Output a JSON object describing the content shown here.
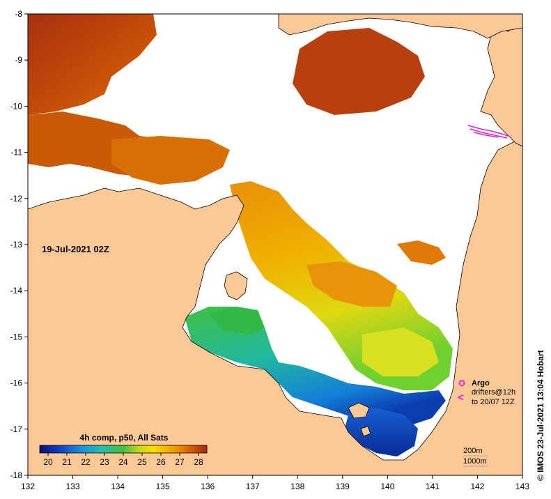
{
  "map": {
    "date_label": "19-Jul-2021 02Z",
    "credit": "© IMOS 23-Jul-2021 13:04 Hobart",
    "x_ticks": [
      "132",
      "133",
      "134",
      "135",
      "136",
      "137",
      "138",
      "139",
      "140",
      "141",
      "142",
      "143"
    ],
    "y_ticks": [
      "-8",
      "-9",
      "-10",
      "-11",
      "-12",
      "-13",
      "-14",
      "-15",
      "-16",
      "-17",
      "-18"
    ],
    "x_range": [
      132,
      143
    ],
    "y_range": [
      -18,
      -8
    ],
    "colorbar": {
      "title": "4h comp, p50, All Sats",
      "ticks": [
        "20",
        "21",
        "22",
        "23",
        "24",
        "25",
        "26",
        "27",
        "28"
      ],
      "range": [
        20,
        28
      ],
      "colors": [
        "#0a0a7a",
        "#1040c8",
        "#1890e0",
        "#20c0b0",
        "#40c040",
        "#c8d820",
        "#f8e000",
        "#f0a000",
        "#d86000",
        "#a02808"
      ]
    },
    "legend": {
      "argo_label": "Argo",
      "drifters_line1": "drifters@12h",
      "drifters_line2": "to 20/07 12Z",
      "argo_symbol": "✪",
      "drifter_symbol": "<"
    },
    "depth_legend": {
      "line1": "200m",
      "line2": "1000m"
    },
    "colors": {
      "land": "#fcc896",
      "ocean_nodata": "#ffffff",
      "coast": "#000000",
      "drifters": "#e020e0"
    }
  }
}
